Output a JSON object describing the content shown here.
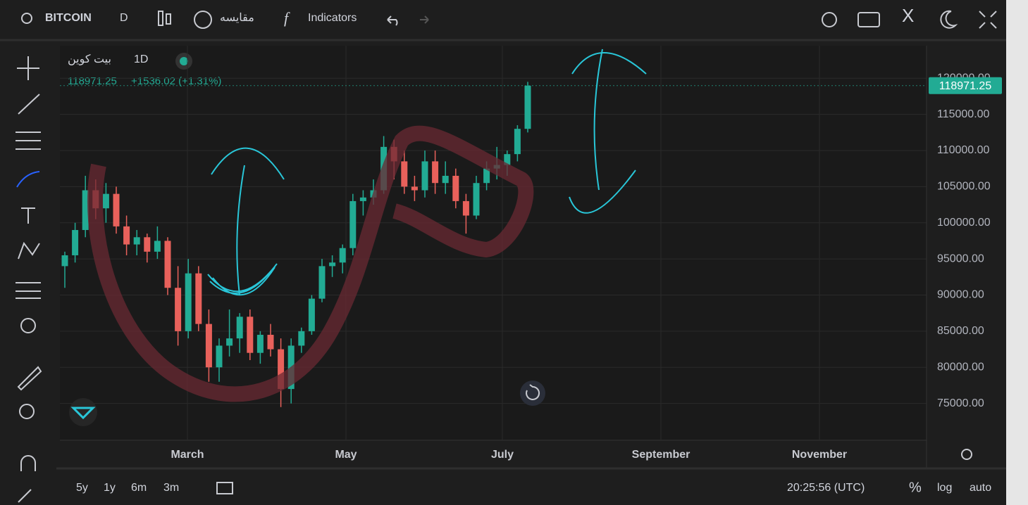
{
  "toolbar": {
    "symbol": "BITCOIN",
    "interval": "D",
    "compare": "مقایسه",
    "indicators": "Indicators"
  },
  "legend": {
    "name": "بيت كوين",
    "interval": "1D",
    "change": "+1536.02 (+1.31%)"
  },
  "bottom": {
    "ranges": [
      "5y",
      "1y",
      "6m",
      "3m"
    ],
    "time": "20:25:56 (UTC)",
    "percent": "%",
    "log": "log",
    "auto": "auto"
  },
  "chart_data": {
    "type": "candlestick",
    "up_color": "#22ab94",
    "down_color": "#e8615b",
    "x_labels": [
      "March",
      "May",
      "July",
      "September",
      "November"
    ],
    "ylim": [
      70000,
      124500
    ],
    "yticks": [
      {
        "value": 75000,
        "label": "75000.00"
      },
      {
        "value": 80000,
        "label": "80000.00"
      },
      {
        "value": 85000,
        "label": "85000.00"
      },
      {
        "value": 90000,
        "label": "90000.00"
      },
      {
        "value": 95000,
        "label": "95000.00"
      },
      {
        "value": 100000,
        "label": "100000.00"
      },
      {
        "value": 105000,
        "label": "105000.00"
      },
      {
        "value": 110000,
        "label": "110000.00"
      },
      {
        "value": 115000,
        "label": "115000.00"
      },
      {
        "value": 120000,
        "label": "120000.00"
      }
    ],
    "grid": true,
    "open": [
      94000,
      95500,
      99000,
      104500,
      102000,
      104000,
      99500,
      97000,
      98000,
      96000,
      97500,
      91000,
      85000,
      93000,
      86000,
      80000,
      83000,
      84000,
      87000,
      82000,
      84500,
      82500,
      77000,
      83000,
      85000,
      89500,
      94000,
      94500,
      96500,
      103000,
      103500,
      104500,
      110500,
      108500,
      105000,
      104500,
      108500,
      105500,
      106500,
      103000,
      101000,
      105500,
      107500,
      108000,
      109500,
      113000
    ],
    "high": [
      96000,
      100000,
      106500,
      106000,
      105500,
      105000,
      101000,
      99000,
      98500,
      99500,
      98000,
      94000,
      95000,
      94000,
      88000,
      84000,
      88000,
      87500,
      88000,
      85000,
      86000,
      84000,
      84000,
      85500,
      90000,
      95000,
      95500,
      97000,
      104000,
      104500,
      106000,
      112000,
      111500,
      110000,
      106500,
      110000,
      110000,
      108500,
      107500,
      104000,
      106500,
      108500,
      110500,
      110000,
      113500,
      119500
    ],
    "low": [
      91000,
      94500,
      98000,
      100500,
      100000,
      98500,
      95500,
      95500,
      94500,
      95000,
      90000,
      83000,
      84000,
      85000,
      78000,
      78000,
      81500,
      82000,
      81000,
      80500,
      81500,
      74500,
      75000,
      82000,
      84500,
      89000,
      92500,
      93000,
      95500,
      101000,
      102500,
      104000,
      106000,
      104000,
      103000,
      103500,
      104000,
      104000,
      102000,
      98500,
      100500,
      104500,
      106000,
      106500,
      108500,
      112500
    ],
    "close": [
      95500,
      99000,
      104500,
      102000,
      104000,
      99500,
      97000,
      98000,
      96000,
      97500,
      91000,
      85000,
      93000,
      86000,
      80000,
      83000,
      84000,
      87000,
      82000,
      84500,
      82500,
      77000,
      83000,
      85000,
      89500,
      94000,
      94500,
      96500,
      103000,
      103500,
      104500,
      110500,
      108500,
      105000,
      104500,
      108500,
      105500,
      106500,
      103000,
      101000,
      105500,
      107500,
      108000,
      109500,
      113000,
      118971.25
    ]
  }
}
